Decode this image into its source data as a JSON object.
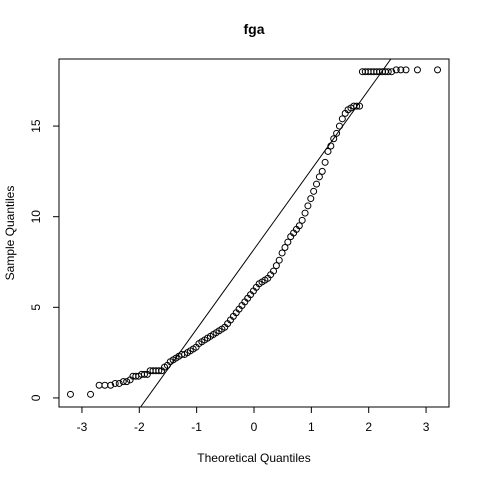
{
  "chart_data": {
    "type": "scatter",
    "title": "fga",
    "xlabel": "Theoretical Quantiles",
    "ylabel": "Sample Quantiles",
    "xlim": [
      -3.4,
      3.4
    ],
    "ylim": [
      -0.5,
      18.7
    ],
    "xticks": [
      -3,
      -2,
      -1,
      0,
      1,
      2,
      3
    ],
    "yticks": [
      0,
      5,
      10,
      15
    ],
    "grid": false,
    "legend": "none",
    "point_style": "open-circle",
    "reference_line": {
      "slope": 4.4,
      "intercept": 8.2
    },
    "points": [
      [
        -3.2,
        0.2
      ],
      [
        -2.85,
        0.2
      ],
      [
        -2.7,
        0.7
      ],
      [
        -2.6,
        0.7
      ],
      [
        -2.5,
        0.7
      ],
      [
        -2.42,
        0.8
      ],
      [
        -2.35,
        0.8
      ],
      [
        -2.28,
        0.9
      ],
      [
        -2.22,
        0.9
      ],
      [
        -2.16,
        1.0
      ],
      [
        -2.11,
        1.2
      ],
      [
        -2.06,
        1.2
      ],
      [
        -2.01,
        1.2
      ],
      [
        -1.96,
        1.3
      ],
      [
        -1.91,
        1.3
      ],
      [
        -1.86,
        1.3
      ],
      [
        -1.81,
        1.5
      ],
      [
        -1.76,
        1.5
      ],
      [
        -1.71,
        1.5
      ],
      [
        -1.66,
        1.5
      ],
      [
        -1.61,
        1.5
      ],
      [
        -1.56,
        1.7
      ],
      [
        -1.51,
        1.8
      ],
      [
        -1.46,
        2.0
      ],
      [
        -1.41,
        2.1
      ],
      [
        -1.36,
        2.2
      ],
      [
        -1.31,
        2.3
      ],
      [
        -1.26,
        2.4
      ],
      [
        -1.21,
        2.4
      ],
      [
        -1.16,
        2.5
      ],
      [
        -1.11,
        2.6
      ],
      [
        -1.06,
        2.7
      ],
      [
        -1.01,
        2.8
      ],
      [
        -0.96,
        3.0
      ],
      [
        -0.91,
        3.1
      ],
      [
        -0.86,
        3.2
      ],
      [
        -0.81,
        3.3
      ],
      [
        -0.76,
        3.4
      ],
      [
        -0.71,
        3.5
      ],
      [
        -0.66,
        3.6
      ],
      [
        -0.61,
        3.7
      ],
      [
        -0.56,
        3.8
      ],
      [
        -0.51,
        3.9
      ],
      [
        -0.46,
        4.1
      ],
      [
        -0.41,
        4.3
      ],
      [
        -0.36,
        4.5
      ],
      [
        -0.31,
        4.7
      ],
      [
        -0.26,
        4.9
      ],
      [
        -0.21,
        5.1
      ],
      [
        -0.16,
        5.3
      ],
      [
        -0.11,
        5.5
      ],
      [
        -0.06,
        5.7
      ],
      [
        -0.01,
        5.9
      ],
      [
        0.04,
        6.1
      ],
      [
        0.09,
        6.3
      ],
      [
        0.14,
        6.4
      ],
      [
        0.19,
        6.5
      ],
      [
        0.24,
        6.6
      ],
      [
        0.29,
        6.8
      ],
      [
        0.34,
        7.0
      ],
      [
        0.39,
        7.3
      ],
      [
        0.44,
        7.6
      ],
      [
        0.49,
        8.0
      ],
      [
        0.54,
        8.3
      ],
      [
        0.59,
        8.6
      ],
      [
        0.64,
        8.9
      ],
      [
        0.69,
        9.1
      ],
      [
        0.74,
        9.3
      ],
      [
        0.79,
        9.5
      ],
      [
        0.84,
        9.8
      ],
      [
        0.89,
        10.2
      ],
      [
        0.94,
        10.6
      ],
      [
        0.99,
        11.0
      ],
      [
        1.04,
        11.4
      ],
      [
        1.09,
        11.8
      ],
      [
        1.14,
        12.2
      ],
      [
        1.19,
        12.5
      ],
      [
        1.24,
        13.0
      ],
      [
        1.29,
        13.6
      ],
      [
        1.34,
        13.9
      ],
      [
        1.39,
        14.3
      ],
      [
        1.44,
        14.6
      ],
      [
        1.49,
        15.0
      ],
      [
        1.54,
        15.4
      ],
      [
        1.59,
        15.7
      ],
      [
        1.64,
        15.9
      ],
      [
        1.69,
        16.0
      ],
      [
        1.74,
        16.1
      ],
      [
        1.79,
        16.1
      ],
      [
        1.84,
        16.1
      ],
      [
        1.89,
        18.0
      ],
      [
        1.94,
        18.0
      ],
      [
        1.99,
        18.0
      ],
      [
        2.04,
        18.0
      ],
      [
        2.09,
        18.0
      ],
      [
        2.14,
        18.0
      ],
      [
        2.19,
        18.0
      ],
      [
        2.24,
        18.0
      ],
      [
        2.29,
        18.0
      ],
      [
        2.34,
        18.0
      ],
      [
        2.4,
        18.0
      ],
      [
        2.48,
        18.1
      ],
      [
        2.56,
        18.1
      ],
      [
        2.65,
        18.1
      ],
      [
        2.85,
        18.1
      ],
      [
        3.2,
        18.1
      ]
    ]
  }
}
